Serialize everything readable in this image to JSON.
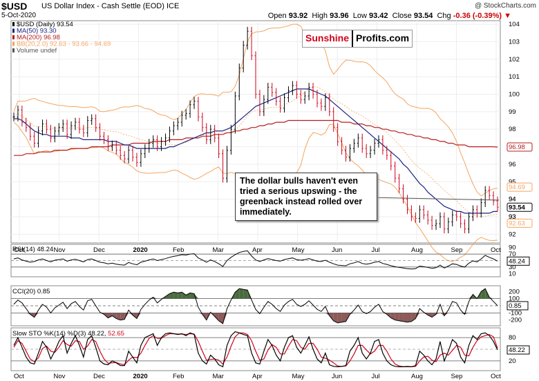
{
  "header": {
    "symbol": "$USD",
    "description": "US Dollar Index - Cash Settle (EOD)  ICE",
    "date": "5-Oct-2020",
    "watermark": "@ StockCharts.com",
    "open_label": "Open",
    "open": "93.92",
    "high_label": "High",
    "high": "93.96",
    "low_label": "Low",
    "low": "93.42",
    "close_label": "Close",
    "close": "93.54",
    "chg_label": "Chg",
    "chg": "-0.36 (-0.39%)",
    "chg_marker": "▼"
  },
  "logo": {
    "part1": "Sunshine",
    "part2": "Profits.com"
  },
  "annotation": "The dollar bulls haven't even tried a serious upswing - the greenback instead rolled over immediately.",
  "colors": {
    "price_up": "#000000",
    "price_down": "#d0021b",
    "ma50": "#1a237e",
    "ma200": "#b71c1c",
    "bb": "#f4a460",
    "rsi_fill_low": "#8d5a5a",
    "cci_pos": "#4a6b3f",
    "cci_neg": "#8d5a5a",
    "sto_k": "#000000",
    "sto_d": "#d0021b"
  },
  "chart_data": [
    {
      "type": "line",
      "title": "$USD (Daily)",
      "legend": [
        {
          "name": "$USD (Daily)",
          "value": "93.54"
        },
        {
          "name": "MA(50)",
          "value": "93.30"
        },
        {
          "name": "MA(200)",
          "value": "96.98"
        },
        {
          "name": "BB(20,2.0)",
          "value": "92.63 - 93.66 - 94.69"
        },
        {
          "name": "Volume undef",
          "value": ""
        }
      ],
      "x_labels": [
        "Oct",
        "Nov",
        "Dec",
        "2020",
        "Feb",
        "Mar",
        "Apr",
        "May",
        "Jun",
        "Jul",
        "Aug",
        "Sep",
        "Oct"
      ],
      "ylim": [
        91.5,
        104.2
      ],
      "y_ticks": [
        92,
        93,
        94,
        95,
        96,
        97,
        98,
        99,
        100,
        101,
        102,
        103,
        104
      ],
      "price_tags": [
        {
          "value": "94.69",
          "v": 94.69
        },
        {
          "value": "94",
          "v": 94
        },
        {
          "value": "93.54",
          "v": 93.54
        },
        {
          "value": "93",
          "v": 93
        },
        {
          "value": "96.98",
          "v": 96.98
        },
        {
          "value": "92.63",
          "v": 92.63
        }
      ],
      "close_series": [
        98.7,
        99.1,
        98.4,
        98.1,
        97.6,
        97.2,
        97.9,
        98.3,
        98.0,
        97.5,
        97.9,
        98.1,
        98.3,
        97.7,
        98.2,
        98.4,
        98.0,
        97.8,
        98.5,
        98.6,
        98.1,
        97.6,
        97.4,
        97.0,
        97.1,
        96.8,
        96.5,
        96.3,
        96.8,
        96.4,
        96.1,
        96.6,
        96.9,
        97.2,
        97.4,
        97.0,
        97.3,
        97.5,
        97.9,
        98.2,
        98.4,
        98.8,
        98.9,
        99.4,
        99.6,
        98.7,
        98.1,
        97.4,
        98.0,
        97.5,
        96.6,
        95.2,
        96.8,
        98.0,
        99.9,
        101.5,
        102.8,
        103.6,
        102.2,
        100.0,
        99.0,
        99.7,
        100.4,
        100.1,
        99.6,
        99.2,
        99.8,
        100.2,
        100.5,
        100.0,
        99.7,
        99.9,
        100.4,
        100.0,
        99.5,
        99.3,
        99.8,
        99.0,
        98.1,
        97.3,
        96.8,
        96.4,
        96.9,
        97.2,
        97.5,
        96.9,
        96.6,
        96.8,
        97.2,
        97.4,
        96.8,
        96.5,
        95.9,
        95.2,
        94.6,
        94.0,
        93.4,
        93.0,
        92.9,
        93.4,
        93.1,
        92.8,
        92.5,
        92.6,
        93.0,
        92.3,
        92.7,
        93.1,
        93.0,
        92.6,
        92.3,
        93.0,
        93.4,
        93.2,
        93.8,
        94.5,
        94.2,
        93.9,
        93.54
      ],
      "ma50_series": [
        98.6,
        98.6,
        98.5,
        98.3,
        98.1,
        97.9,
        97.8,
        97.7,
        97.7,
        97.6,
        97.6,
        97.6,
        97.6,
        97.6,
        97.5,
        97.5,
        97.5,
        97.4,
        97.4,
        97.4,
        97.4,
        97.4,
        97.4,
        97.3,
        97.3,
        97.3,
        97.2,
        97.1,
        97.1,
        97.0,
        96.9,
        96.9,
        96.9,
        96.9,
        96.9,
        96.9,
        96.9,
        96.9,
        97.0,
        97.0,
        97.1,
        97.2,
        97.3,
        97.4,
        97.5,
        97.6,
        97.7,
        97.8,
        97.8,
        97.9,
        97.9,
        97.9,
        98.0,
        98.1,
        98.3,
        98.5,
        98.7,
        98.9,
        99.1,
        99.3,
        99.4,
        99.5,
        99.6,
        99.7,
        99.8,
        99.9,
        100.0,
        100.1,
        100.2,
        100.3,
        100.3,
        100.3,
        100.3,
        100.2,
        100.1,
        100.0,
        99.9,
        99.7,
        99.5,
        99.3,
        99.1,
        98.9,
        98.7,
        98.5,
        98.3,
        98.1,
        97.9,
        97.7,
        97.5,
        97.3,
        97.1,
        96.9,
        96.7,
        96.5,
        96.3,
        96.0,
        95.8,
        95.5,
        95.2,
        94.9,
        94.7,
        94.4,
        94.2,
        94.0,
        93.8,
        93.6,
        93.5,
        93.4,
        93.3,
        93.3,
        93.2,
        93.2,
        93.2,
        93.2,
        93.2,
        93.2,
        93.2,
        93.3,
        93.3
      ],
      "ma200_series": [
        96.5,
        96.5,
        96.5,
        96.6,
        96.6,
        96.6,
        96.7,
        96.7,
        96.7,
        96.7,
        96.8,
        96.8,
        96.8,
        96.8,
        96.9,
        96.9,
        96.9,
        96.9,
        96.9,
        97.0,
        97.0,
        97.0,
        97.0,
        97.0,
        97.1,
        97.1,
        97.1,
        97.1,
        97.1,
        97.2,
        97.2,
        97.2,
        97.2,
        97.2,
        97.3,
        97.3,
        97.3,
        97.3,
        97.4,
        97.4,
        97.4,
        97.4,
        97.5,
        97.5,
        97.5,
        97.5,
        97.6,
        97.6,
        97.6,
        97.7,
        97.7,
        97.7,
        97.8,
        97.8,
        97.9,
        97.9,
        98.0,
        98.0,
        98.1,
        98.1,
        98.2,
        98.2,
        98.3,
        98.3,
        98.4,
        98.4,
        98.4,
        98.5,
        98.5,
        98.5,
        98.5,
        98.5,
        98.5,
        98.5,
        98.5,
        98.5,
        98.5,
        98.5,
        98.5,
        98.5,
        98.4,
        98.4,
        98.4,
        98.3,
        98.3,
        98.3,
        98.2,
        98.2,
        98.1,
        98.1,
        98.0,
        98.0,
        97.9,
        97.9,
        97.8,
        97.8,
        97.7,
        97.7,
        97.6,
        97.6,
        97.5,
        97.5,
        97.4,
        97.4,
        97.3,
        97.3,
        97.2,
        97.2,
        97.1,
        97.1,
        97.1,
        97.0,
        97.0,
        97.0,
        97.0,
        97.0,
        97.0,
        97.0,
        96.98
      ]
    },
    {
      "type": "line",
      "title": "RSI(14)",
      "value": "48.24",
      "y_ticks": [
        90,
        70,
        50,
        30,
        10
      ],
      "ylim": [
        0,
        100
      ],
      "levels": [
        70,
        50,
        30
      ],
      "series": [
        55,
        58,
        52,
        48,
        45,
        47,
        52,
        55,
        50,
        46,
        51,
        53,
        55,
        48,
        52,
        54,
        50,
        46,
        53,
        55,
        50,
        45,
        43,
        40,
        42,
        39,
        37,
        36,
        44,
        40,
        37,
        45,
        48,
        52,
        55,
        50,
        53,
        56,
        60,
        63,
        65,
        68,
        67,
        70,
        71,
        58,
        52,
        45,
        52,
        47,
        40,
        32,
        50,
        60,
        68,
        75,
        78,
        80,
        64,
        52,
        47,
        52,
        56,
        53,
        50,
        48,
        53,
        56,
        58,
        53,
        51,
        53,
        56,
        52,
        48,
        47,
        51,
        45,
        40,
        36,
        35,
        34,
        40,
        43,
        47,
        41,
        39,
        41,
        45,
        47,
        41,
        38,
        34,
        31,
        29,
        27,
        25,
        24,
        25,
        33,
        31,
        29,
        26,
        28,
        36,
        27,
        33,
        40,
        38,
        33,
        30,
        42,
        49,
        46,
        55,
        66,
        60,
        55,
        48.24
      ]
    },
    {
      "type": "area",
      "title": "CCI(20)",
      "value": "0.85",
      "y_ticks": [
        200,
        100,
        0,
        -100,
        -200
      ],
      "ylim": [
        -280,
        280
      ],
      "levels": [
        100,
        0,
        -100
      ],
      "series": [
        20,
        80,
        40,
        -40,
        -120,
        -160,
        -60,
        20,
        -20,
        -100,
        -30,
        10,
        50,
        -40,
        30,
        60,
        -10,
        -60,
        70,
        90,
        0,
        -90,
        -120,
        -170,
        -140,
        -180,
        -200,
        -190,
        -60,
        -130,
        -180,
        -50,
        20,
        80,
        120,
        40,
        90,
        130,
        170,
        190,
        180,
        190,
        150,
        180,
        170,
        -20,
        -120,
        -200,
        -90,
        -150,
        -210,
        -250,
        -40,
        80,
        190,
        240,
        230,
        220,
        80,
        -50,
        -110,
        -20,
        60,
        20,
        -40,
        -80,
        10,
        60,
        90,
        20,
        -10,
        20,
        70,
        10,
        -50,
        -80,
        -10,
        -140,
        -210,
        -240,
        -230,
        -220,
        -120,
        -60,
        10,
        -80,
        -110,
        -80,
        -20,
        20,
        -80,
        -120,
        -170,
        -200,
        -210,
        -220,
        -230,
        -220,
        -180,
        -40,
        -90,
        -130,
        -160,
        -120,
        20,
        -140,
        -60,
        60,
        40,
        -60,
        -120,
        60,
        160,
        100,
        200,
        240,
        120,
        60,
        0.85
      ]
    },
    {
      "type": "line",
      "title": "Slow STO %K(14) %D(3)",
      "k_value": "48.22",
      "d_value": "52.65",
      "y_ticks": [
        80,
        20
      ],
      "ylim": [
        -5,
        105
      ],
      "levels": [
        80,
        20
      ],
      "k_series": [
        60,
        80,
        55,
        30,
        15,
        12,
        40,
        70,
        55,
        25,
        45,
        70,
        85,
        40,
        65,
        85,
        60,
        30,
        75,
        85,
        55,
        20,
        12,
        10,
        20,
        15,
        8,
        8,
        45,
        30,
        15,
        60,
        80,
        85,
        90,
        60,
        80,
        90,
        92,
        90,
        88,
        90,
        85,
        92,
        88,
        40,
        20,
        12,
        35,
        25,
        10,
        5,
        60,
        85,
        95,
        92,
        88,
        85,
        40,
        15,
        12,
        45,
        75,
        60,
        35,
        20,
        55,
        80,
        85,
        55,
        40,
        60,
        82,
        50,
        25,
        15,
        40,
        10,
        6,
        5,
        6,
        8,
        45,
        60,
        80,
        40,
        25,
        40,
        70,
        75,
        40,
        20,
        10,
        6,
        5,
        5,
        6,
        5,
        8,
        45,
        35,
        20,
        10,
        25,
        70,
        20,
        45,
        75,
        65,
        30,
        15,
        60,
        85,
        75,
        90,
        92,
        85,
        70,
        48.22
      ],
      "d_series": [
        55,
        72,
        65,
        45,
        25,
        18,
        28,
        52,
        58,
        45,
        42,
        55,
        72,
        62,
        58,
        72,
        70,
        50,
        58,
        75,
        70,
        45,
        25,
        14,
        15,
        16,
        12,
        10,
        22,
        30,
        28,
        40,
        60,
        78,
        85,
        78,
        78,
        85,
        90,
        90,
        89,
        89,
        88,
        90,
        89,
        70,
        45,
        22,
        24,
        25,
        22,
        12,
        30,
        58,
        82,
        92,
        92,
        88,
        72,
        45,
        22,
        25,
        48,
        62,
        55,
        38,
        38,
        58,
        75,
        72,
        55,
        50,
        65,
        65,
        50,
        30,
        27,
        22,
        15,
        7,
        6,
        7,
        20,
        38,
        60,
        60,
        48,
        38,
        45,
        60,
        60,
        45,
        25,
        12,
        7,
        5,
        5,
        5,
        6,
        20,
        30,
        32,
        22,
        18,
        35,
        40,
        35,
        47,
        60,
        55,
        35,
        33,
        55,
        72,
        82,
        85,
        88,
        82,
        52.65
      ]
    }
  ]
}
